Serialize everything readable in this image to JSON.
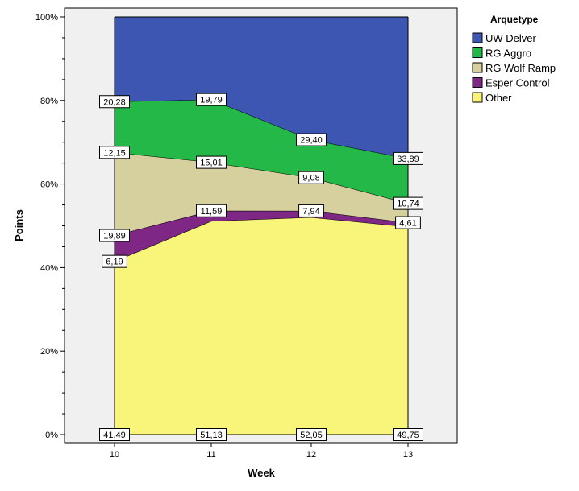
{
  "chart_data": {
    "type": "area",
    "stacked_percent": true,
    "xlabel": "Week",
    "ylabel": "Points",
    "x": [
      "10",
      "11",
      "12",
      "13"
    ],
    "ylim": [
      0,
      100
    ],
    "y_ticks": [
      "0%",
      "20%",
      "40%",
      "60%",
      "80%",
      "100%"
    ],
    "grid": false,
    "legend": {
      "title": "Arquetype",
      "position": "right"
    },
    "series": [
      {
        "name": "Other",
        "color": "#f9f47a",
        "values": [
          41.49,
          51.13,
          52.05,
          49.75
        ],
        "labels": [
          "41,49",
          "51,13",
          "52,05",
          "49,75"
        ]
      },
      {
        "name": "Esper Control",
        "color": "#7e2784",
        "values": [
          6.19,
          2.48,
          1.53,
          1.01
        ],
        "labels": [
          "6,19",
          "",
          "",
          ""
        ]
      },
      {
        "name": "RG Wolf Ramp",
        "color": "#d6cf9e",
        "values": [
          19.89,
          11.59,
          7.94,
          4.61
        ],
        "labels": [
          "19,89",
          "11,59",
          "7,94",
          "4,61"
        ]
      },
      {
        "name": "RG Aggro",
        "color": "#23b848",
        "values": [
          12.15,
          15.01,
          9.08,
          10.74
        ],
        "labels": [
          "12,15",
          "15,01",
          "9,08",
          "10,74"
        ]
      },
      {
        "name": "UW Delver",
        "color": "#3d56b2",
        "values": [
          20.28,
          19.79,
          29.4,
          33.89
        ],
        "labels": [
          "20,28",
          "19,79",
          "29,40",
          "33,89"
        ]
      }
    ],
    "legend_order": [
      "UW Delver",
      "RG Aggro",
      "RG Wolf Ramp",
      "Esper Control",
      "Other"
    ]
  }
}
